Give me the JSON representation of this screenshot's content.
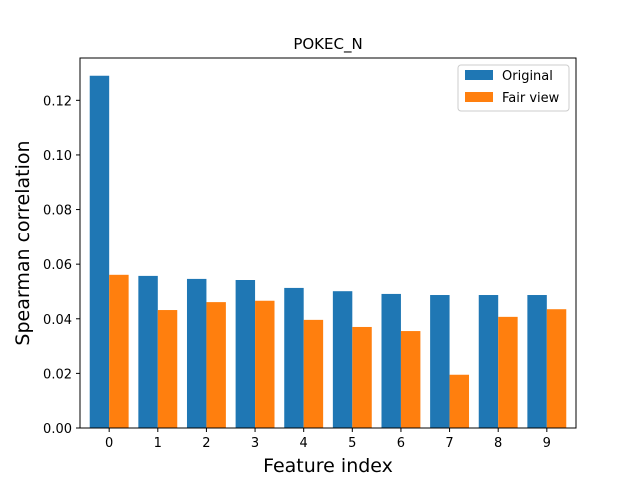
{
  "chart_data": {
    "type": "bar",
    "title": "POKEC_N",
    "xlabel": "Feature index",
    "ylabel": "Spearman correlation",
    "categories": [
      "0",
      "1",
      "2",
      "3",
      "4",
      "5",
      "6",
      "7",
      "8",
      "9"
    ],
    "yticks": [
      "0.00",
      "0.02",
      "0.04",
      "0.06",
      "0.08",
      "0.10",
      "0.12"
    ],
    "ylim": [
      0,
      0.1355
    ],
    "legend_position": "top-right",
    "grid": false,
    "series": [
      {
        "name": "Original",
        "color": "#1f77b4",
        "values": [
          0.129,
          0.0557,
          0.0546,
          0.0542,
          0.0513,
          0.0501,
          0.0491,
          0.0487,
          0.0487,
          0.0487
        ]
      },
      {
        "name": "Fair view",
        "color": "#ff7f0e",
        "values": [
          0.0561,
          0.0432,
          0.0461,
          0.0466,
          0.0396,
          0.037,
          0.0355,
          0.0195,
          0.0407,
          0.0435
        ]
      }
    ]
  }
}
